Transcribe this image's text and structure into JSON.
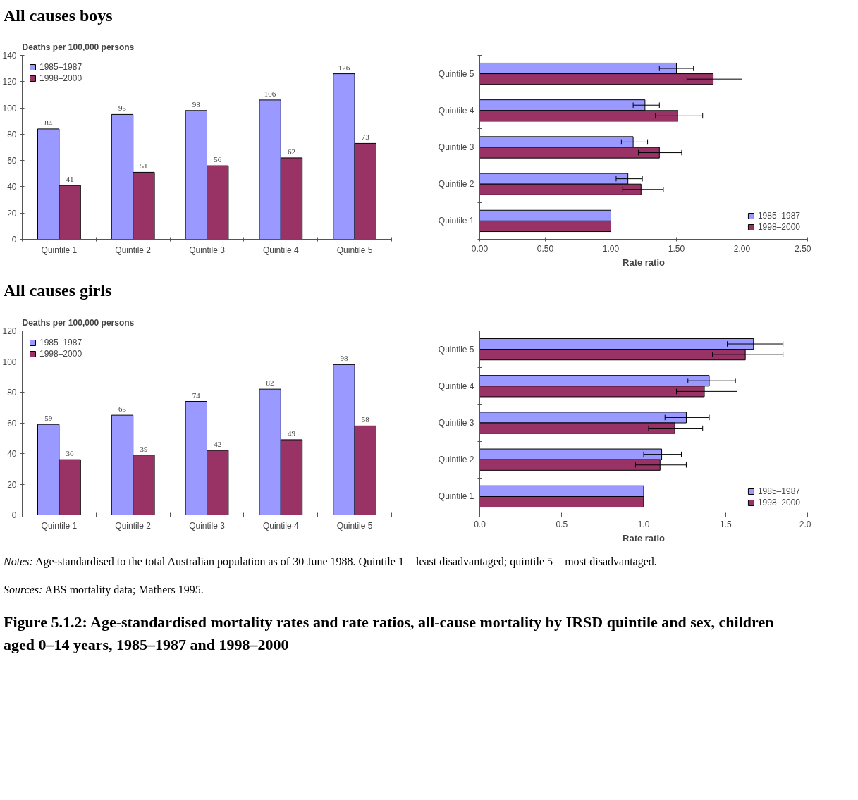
{
  "chart_data": [
    {
      "type": "bar",
      "title": "All causes boys",
      "ylabel": "Deaths per 100,000 persons",
      "categories": [
        "Quintile 1",
        "Quintile 2",
        "Quintile 3",
        "Quintile 4",
        "Quintile 5"
      ],
      "series": [
        {
          "name": "1985–1987",
          "color": "#9999ff",
          "values": [
            84,
            95,
            98,
            106,
            126
          ]
        },
        {
          "name": "1998–2000",
          "color": "#993366",
          "values": [
            41,
            51,
            56,
            62,
            73
          ]
        }
      ],
      "ylim": [
        0,
        140
      ],
      "yticks": [
        0,
        20,
        40,
        60,
        80,
        100,
        120,
        140
      ],
      "data_labels": true,
      "legend": "top left",
      "grid": false
    },
    {
      "type": "bar",
      "orientation": "horizontal",
      "xlabel": "Rate ratio",
      "categories": [
        "Quintile 5",
        "Quintile 4",
        "Quintile 3",
        "Quintile 2",
        "Quintile 1"
      ],
      "series": [
        {
          "name": "1985–1987",
          "color": "#9999ff",
          "values": [
            1.5,
            1.26,
            1.17,
            1.13,
            1.0
          ],
          "errors": [
            [
              1.37,
              1.63
            ],
            [
              1.17,
              1.37
            ],
            [
              1.08,
              1.28
            ],
            [
              1.04,
              1.24
            ],
            null
          ]
        },
        {
          "name": "1998–2000",
          "color": "#993366",
          "values": [
            1.78,
            1.51,
            1.37,
            1.23,
            1.0
          ],
          "errors": [
            [
              1.58,
              2.0
            ],
            [
              1.34,
              1.7
            ],
            [
              1.21,
              1.54
            ],
            [
              1.09,
              1.4
            ],
            null
          ]
        }
      ],
      "xlim": [
        0,
        2.5
      ],
      "xticks": [
        {
          "value": 0,
          "label": "0.00"
        },
        {
          "value": 0.5,
          "label": "0.50"
        },
        {
          "value": 1,
          "label": "1.00"
        },
        {
          "value": 1.5,
          "label": "1.50"
        },
        {
          "value": 2,
          "label": "2.00"
        },
        {
          "value": 2.5,
          "label": "2.50"
        }
      ],
      "legend": "bottom right",
      "grid": false
    },
    {
      "type": "bar",
      "title": "All causes girls",
      "ylabel": "Deaths per 100,000 persons",
      "categories": [
        "Quintile 1",
        "Quintile 2",
        "Quintile 3",
        "Quintile 4",
        "Quintile 5"
      ],
      "series": [
        {
          "name": "1985–1987",
          "color": "#9999ff",
          "values": [
            59,
            65,
            74,
            82,
            98
          ]
        },
        {
          "name": "1998–2000",
          "color": "#993366",
          "values": [
            36,
            39,
            42,
            49,
            58
          ]
        }
      ],
      "ylim": [
        0,
        120
      ],
      "yticks": [
        0,
        20,
        40,
        60,
        80,
        100,
        120
      ],
      "data_labels": true,
      "legend": "top left",
      "grid": false
    },
    {
      "type": "bar",
      "orientation": "horizontal",
      "xlabel": "Rate ratio",
      "categories": [
        "Quintile 5",
        "Quintile 4",
        "Quintile 3",
        "Quintile 2",
        "Quintile 1"
      ],
      "series": [
        {
          "name": "1985–1987",
          "color": "#9999ff",
          "values": [
            1.67,
            1.4,
            1.26,
            1.11,
            1.0
          ],
          "errors": [
            [
              1.51,
              1.85
            ],
            [
              1.27,
              1.56
            ],
            [
              1.13,
              1.4
            ],
            [
              1.0,
              1.23
            ],
            null
          ]
        },
        {
          "name": "1998–2000",
          "color": "#993366",
          "values": [
            1.62,
            1.37,
            1.19,
            1.1,
            1.0
          ],
          "errors": [
            [
              1.42,
              1.85
            ],
            [
              1.2,
              1.57
            ],
            [
              1.03,
              1.36
            ],
            [
              0.95,
              1.26
            ],
            null
          ]
        }
      ],
      "xlim": [
        0,
        2
      ],
      "xticks": [
        {
          "value": 0,
          "label": "0.0"
        },
        {
          "value": 0.5,
          "label": "0.5"
        },
        {
          "value": 1,
          "label": "1.0"
        },
        {
          "value": 1.5,
          "label": "1.5"
        },
        {
          "value": 2,
          "label": "2.0"
        }
      ],
      "legend": "bottom right",
      "grid": false,
      "annotations": [
        "Notes: Age-standardised to the total Australian population as of 30 June 1988. Quintile 1 = least disadvantaged; quintile 5 = most disadvantaged.",
        "Sources: ABS mortality data; Mathers 1995.",
        "Figure 5.1.2: Age-standardised mortality rates and rate ratios, all-cause mortality by IRSD quintile and sex, children aged 0–14 years, 1985–1987 and 1998–2000"
      ]
    }
  ]
}
